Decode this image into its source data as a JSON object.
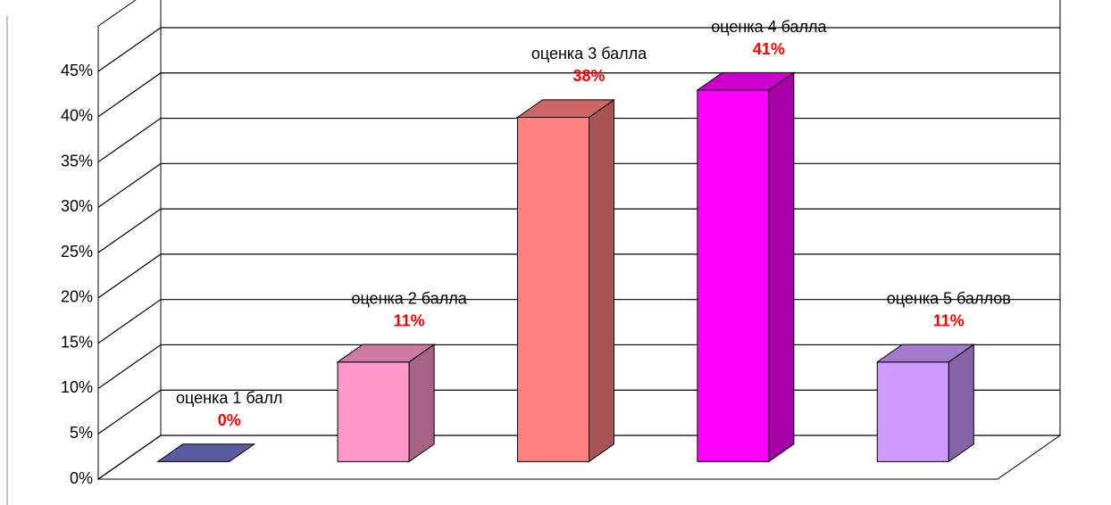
{
  "chart_data": {
    "type": "bar3d",
    "categories": [
      "оценка 1 балл",
      "оценка 2 балла",
      "оценка 3 балла",
      "оценка 4 балла",
      "оценка 5 баллов"
    ],
    "values": [
      0,
      11,
      38,
      41,
      11
    ],
    "value_labels": [
      "0%",
      "11%",
      "38%",
      "41%",
      "11%"
    ],
    "colors": [
      "#7070c8",
      "#ff99cc",
      "#ff8080",
      "#ff00ff",
      "#cc99ff"
    ],
    "ylim": [
      0,
      50
    ],
    "yticks": [
      {
        "value": 0,
        "label": "0%"
      },
      {
        "value": 5,
        "label": "5%"
      },
      {
        "value": 10,
        "label": "10%"
      },
      {
        "value": 15,
        "label": "15%"
      },
      {
        "value": 20,
        "label": "20%"
      },
      {
        "value": 25,
        "label": "25%"
      },
      {
        "value": 30,
        "label": "30%"
      },
      {
        "value": 35,
        "label": "35%"
      },
      {
        "value": 40,
        "label": "40%"
      },
      {
        "value": 45,
        "label": "45%"
      }
    ],
    "grid": true
  }
}
